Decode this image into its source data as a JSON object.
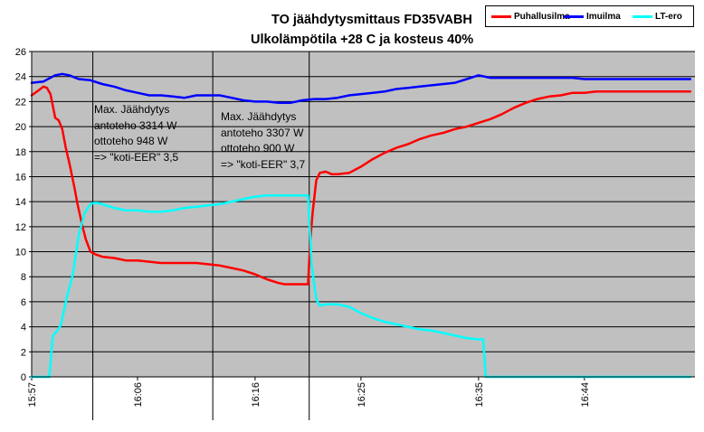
{
  "chart_data": {
    "type": "line",
    "title": "TO jäähdytysmittaus FD35VABH",
    "subtitle": "Ulkolämpötila +28 C ja kosteus 40%",
    "xlabel": "",
    "ylabel": "",
    "ylim": [
      0,
      26
    ],
    "yticks": [
      0,
      2,
      4,
      6,
      8,
      10,
      12,
      14,
      16,
      18,
      20,
      22,
      24,
      26
    ],
    "xlim": [
      0,
      56.4
    ],
    "xticks": [
      {
        "x": 0,
        "label": "15:57"
      },
      {
        "x": 9,
        "label": "16:06"
      },
      {
        "x": 19,
        "label": "16:16"
      },
      {
        "x": 28,
        "label": "16:25"
      },
      {
        "x": 38,
        "label": "16:35"
      },
      {
        "x": 47,
        "label": "16:44"
      }
    ],
    "vlines": [
      5.2,
      15.4,
      23.6
    ],
    "grid": true,
    "legend_position": "top-right",
    "series": [
      {
        "name": "Puhallusilma",
        "color": "#ff0000",
        "x": [
          0,
          0.6,
          1.0,
          1.3,
          1.6,
          2.0,
          2.3,
          2.6,
          2.9,
          3.2,
          3.6,
          3.9,
          4.3,
          4.6,
          5.0,
          5.4,
          6.0,
          7.0,
          8.0,
          9.0,
          10.0,
          11.0,
          12.0,
          13.0,
          14.0,
          15.0,
          16.0,
          17.0,
          18.0,
          19.0,
          20.0,
          21.0,
          21.5,
          22.0,
          23.0,
          23.5,
          23.7,
          23.9,
          24.2,
          24.5,
          25.0,
          25.5,
          26.0,
          27.0,
          28.0,
          29.0,
          30.0,
          31.0,
          32.0,
          33.0,
          34.0,
          35.0,
          36.0,
          37.0,
          38.0,
          39.0,
          40.0,
          41.0,
          42.0,
          43.0,
          44.0,
          45.0,
          46.0,
          47.0,
          48.0,
          49.0,
          50.0,
          51.0,
          52.0,
          53.0,
          54.0,
          55.0,
          56.0
        ],
        "values": [
          22.5,
          22.9,
          23.2,
          23.1,
          22.6,
          20.7,
          20.5,
          19.8,
          18.3,
          17.1,
          15.3,
          13.8,
          12.1,
          11.0,
          10.0,
          9.8,
          9.6,
          9.5,
          9.3,
          9.3,
          9.2,
          9.1,
          9.1,
          9.1,
          9.1,
          9.0,
          8.9,
          8.7,
          8.5,
          8.2,
          7.8,
          7.5,
          7.4,
          7.4,
          7.4,
          7.4,
          11.0,
          13.2,
          15.7,
          16.3,
          16.4,
          16.2,
          16.2,
          16.3,
          16.8,
          17.4,
          17.9,
          18.3,
          18.6,
          19.0,
          19.3,
          19.5,
          19.8,
          20.0,
          20.3,
          20.6,
          21.0,
          21.5,
          21.9,
          22.2,
          22.4,
          22.5,
          22.7,
          22.7,
          22.8,
          22.8,
          22.8,
          22.8,
          22.8,
          22.8,
          22.8,
          22.8,
          22.8
        ]
      },
      {
        "name": "Imuilma",
        "color": "#0000ff",
        "x": [
          0,
          1.0,
          2.0,
          2.6,
          3.2,
          4.0,
          5.0,
          6.0,
          7.0,
          8.0,
          9.0,
          10.0,
          11.0,
          12.0,
          13.0,
          14.0,
          15.0,
          16.0,
          17.0,
          18.0,
          19.0,
          20.0,
          21.0,
          22.0,
          23.0,
          24.0,
          25.0,
          26.0,
          27.0,
          28.0,
          29.0,
          30.0,
          31.0,
          32.0,
          33.0,
          34.0,
          35.0,
          36.0,
          37.0,
          38.0,
          39.0,
          40.0,
          41.0,
          42.0,
          43.0,
          44.0,
          45.0,
          46.0,
          47.0,
          48.0,
          49.0,
          50.0,
          51.0,
          52.0,
          53.0,
          54.0,
          55.0,
          56.0
        ],
        "values": [
          23.5,
          23.6,
          24.1,
          24.2,
          24.1,
          23.8,
          23.7,
          23.4,
          23.2,
          22.9,
          22.7,
          22.5,
          22.5,
          22.4,
          22.3,
          22.5,
          22.5,
          22.5,
          22.3,
          22.1,
          22.0,
          22.0,
          21.9,
          21.9,
          22.1,
          22.2,
          22.2,
          22.3,
          22.5,
          22.6,
          22.7,
          22.8,
          23.0,
          23.1,
          23.2,
          23.3,
          23.4,
          23.5,
          23.8,
          24.1,
          23.9,
          23.9,
          23.9,
          23.9,
          23.9,
          23.9,
          23.9,
          23.9,
          23.8,
          23.8,
          23.8,
          23.8,
          23.8,
          23.8,
          23.8,
          23.8,
          23.8,
          23.8
        ]
      },
      {
        "name": "LT-ero",
        "color": "#00ffff",
        "x": [
          0,
          1.5,
          1.8,
          2.2,
          2.5,
          3.0,
          3.5,
          4.0,
          4.5,
          5.0,
          5.3,
          5.6,
          6.0,
          7.0,
          8.0,
          9.0,
          10.0,
          11.0,
          12.0,
          13.0,
          14.0,
          15.0,
          16.0,
          17.0,
          18.0,
          19.0,
          20.0,
          21.0,
          22.0,
          23.0,
          23.5,
          23.8,
          24.2,
          24.5,
          25.0,
          26.0,
          27.0,
          28.0,
          29.0,
          30.0,
          31.0,
          32.0,
          33.0,
          34.0,
          35.0,
          36.0,
          37.0,
          38.0,
          38.4,
          38.6,
          39.0,
          40.0,
          42.0,
          44.0,
          46.0,
          48.0,
          50.0,
          52.0,
          54.0,
          56.0
        ],
        "values": [
          0,
          0,
          3.3,
          3.7,
          4.2,
          6.4,
          8.2,
          11.3,
          13.1,
          13.8,
          13.9,
          13.9,
          13.8,
          13.5,
          13.3,
          13.3,
          13.2,
          13.2,
          13.3,
          13.5,
          13.6,
          13.7,
          13.8,
          14.0,
          14.2,
          14.4,
          14.5,
          14.5,
          14.5,
          14.5,
          14.5,
          9.0,
          6.2,
          5.7,
          5.8,
          5.8,
          5.6,
          5.1,
          4.7,
          4.4,
          4.2,
          4.0,
          3.8,
          3.7,
          3.5,
          3.3,
          3.1,
          3.0,
          3.0,
          0,
          0,
          0,
          0,
          0,
          0,
          0,
          0,
          0,
          0,
          0
        ]
      }
    ],
    "annotations": [
      {
        "lines": [
          "Max. Jäähdytys",
          "antoteho 3314 W",
          "ottoteho 948 W",
          "=> \"koti-EER\" 3,5"
        ]
      },
      {
        "lines": [
          "Max. Jäähdytys",
          "antoteho 3307 W",
          "ottoteho 900 W",
          "=> \"koti-EER\" 3,7"
        ]
      }
    ]
  }
}
